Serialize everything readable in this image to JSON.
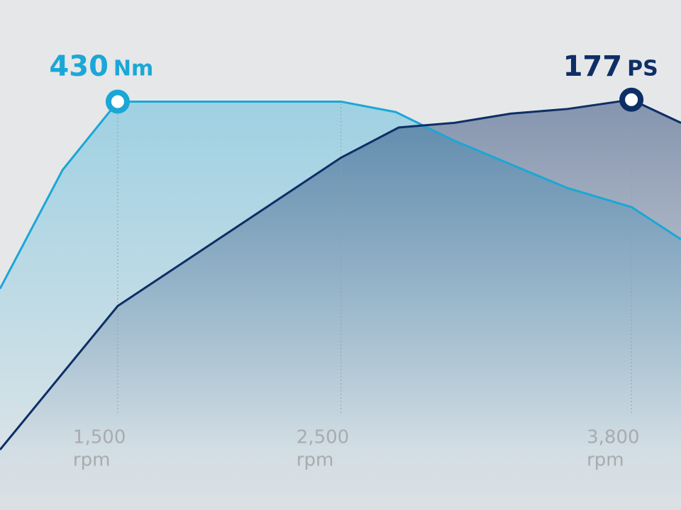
{
  "chart_data": {
    "type": "line",
    "x": [
      973,
      1253,
      1500,
      2500,
      2745,
      3006,
      3260,
      3514,
      3800,
      4022
    ],
    "series": [
      {
        "unit": "Nm",
        "color": "#1ba7d6",
        "axis": "y",
        "values": [
          233,
          358,
          430,
          430,
          419,
          389,
          364,
          339,
          319,
          285
        ]
      },
      {
        "unit": "PS",
        "color": "#0d2f66",
        "axis": "y2",
        "values": [
          26,
          88,
          null,
          152,
          165,
          167,
          171,
          173,
          177,
          167
        ]
      }
    ],
    "power_x": [
      973,
      1500,
      1989,
      2500,
      2758,
      3006,
      3260,
      3514,
      3800,
      4022
    ],
    "xlim": [
      973,
      4022
    ],
    "xticks": [
      {
        "value": 1500,
        "label": "1,500"
      },
      {
        "value": 2500,
        "label": "2,500"
      },
      {
        "value": 3800,
        "label": "3,800"
      }
    ],
    "x_unit": "rpm",
    "ylim": [
      0,
      537
    ],
    "y2lim": [
      0,
      220
    ],
    "grid": true
  }
}
